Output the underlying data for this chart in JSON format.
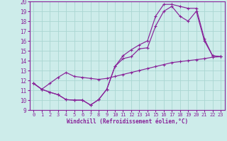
{
  "xlabel": "Windchill (Refroidissement éolien,°C)",
  "xlim": [
    -0.5,
    23.5
  ],
  "ylim": [
    9,
    20
  ],
  "xticks": [
    0,
    1,
    2,
    3,
    4,
    5,
    6,
    7,
    8,
    9,
    10,
    11,
    12,
    13,
    14,
    15,
    16,
    17,
    18,
    19,
    20,
    21,
    22,
    23
  ],
  "yticks": [
    9,
    10,
    11,
    12,
    13,
    14,
    15,
    16,
    17,
    18,
    19,
    20
  ],
  "bg_color": "#cdecea",
  "grid_color": "#aad6d2",
  "line_color": "#882299",
  "line1_x": [
    0,
    1,
    2,
    3,
    4,
    5,
    6,
    7,
    8,
    9,
    10,
    11,
    12,
    13,
    14,
    15,
    16,
    17,
    18,
    19,
    20,
    21,
    22,
    23
  ],
  "line1_y": [
    11.7,
    11.1,
    11.7,
    12.3,
    12.8,
    12.4,
    12.3,
    12.2,
    12.1,
    12.2,
    12.4,
    12.6,
    12.8,
    13.0,
    13.2,
    13.4,
    13.6,
    13.8,
    13.9,
    14.0,
    14.1,
    14.2,
    14.35,
    14.4
  ],
  "line2_x": [
    0,
    1,
    2,
    3,
    4,
    5,
    6,
    7,
    8,
    9,
    10,
    11,
    12,
    13,
    14,
    15,
    16,
    17,
    18,
    19,
    20,
    21,
    22,
    23
  ],
  "line2_y": [
    11.7,
    11.1,
    10.8,
    10.55,
    10.05,
    10.0,
    10.0,
    9.5,
    10.05,
    11.1,
    13.4,
    14.2,
    14.4,
    15.2,
    15.3,
    17.5,
    19.0,
    19.5,
    18.5,
    18.0,
    19.0,
    16.0,
    14.5,
    14.4
  ],
  "line3_x": [
    0,
    1,
    2,
    3,
    4,
    5,
    6,
    7,
    8,
    9,
    10,
    11,
    12,
    13,
    14,
    15,
    16,
    17,
    18,
    19,
    20,
    21,
    22,
    23
  ],
  "line3_y": [
    11.7,
    11.1,
    10.8,
    10.55,
    10.05,
    10.0,
    10.0,
    9.5,
    10.05,
    11.1,
    13.4,
    14.5,
    15.1,
    15.6,
    16.0,
    18.5,
    19.7,
    19.7,
    19.5,
    19.3,
    19.3,
    16.2,
    14.5,
    14.4
  ]
}
